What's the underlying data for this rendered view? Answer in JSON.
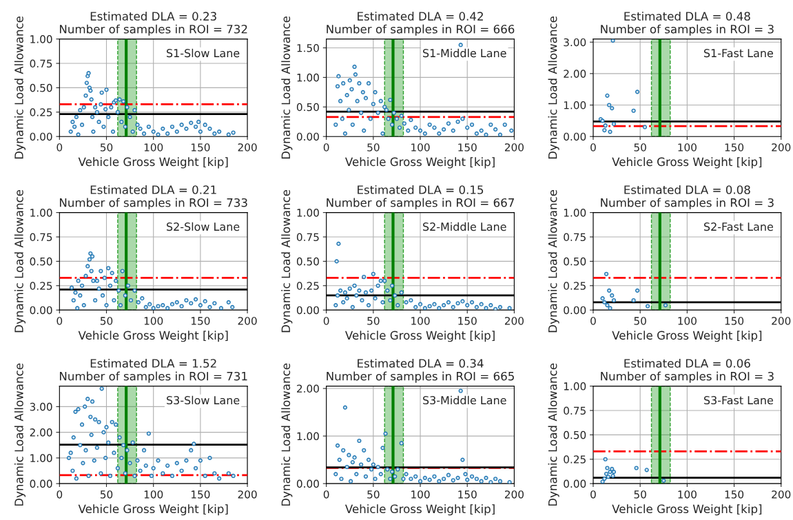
{
  "chart_data": [
    {
      "type": "scatter",
      "title": "Estimated DLA = 0.23\nNumber of samples in ROI = 732",
      "xlabel": "Vehicle Gross Weight [kip]",
      "ylabel": "Dynamic Load Allowance",
      "annotations": [
        "S1-Slow Lane"
      ],
      "color": "#1f77b4",
      "marker": "circle",
      "grid": true,
      "x": [
        12,
        14,
        16,
        18,
        20,
        22,
        24,
        26,
        28,
        29,
        30,
        31,
        32,
        33,
        34,
        35,
        36,
        38,
        40,
        42,
        44,
        45,
        47,
        49,
        50,
        52,
        55,
        57,
        58,
        60,
        62,
        64,
        66,
        68,
        70,
        72,
        75,
        78,
        80,
        83,
        86,
        90,
        95,
        100,
        105,
        110,
        115,
        120,
        125,
        130,
        135,
        140,
        145,
        148,
        150,
        155,
        160,
        165,
        170,
        180,
        185
      ],
      "values": [
        0.05,
        0.15,
        0.1,
        0.2,
        0.02,
        0.27,
        0.12,
        0.3,
        0.42,
        0.55,
        0.62,
        0.65,
        0.5,
        0.47,
        0.38,
        0.2,
        0.05,
        0.3,
        0.25,
        0.15,
        0.33,
        0.45,
        0.1,
        0.28,
        0.48,
        0.2,
        0.3,
        0.05,
        0.35,
        0.37,
        0.25,
        0.38,
        0.15,
        0.36,
        0.1,
        0.3,
        0.2,
        0.05,
        0.27,
        0.12,
        0.08,
        0.03,
        0.1,
        0.05,
        0.02,
        0.08,
        0.03,
        0.1,
        0.05,
        0.12,
        0.08,
        0.14,
        0.1,
        0.15,
        0.05,
        0.12,
        0.08,
        0.03,
        0.05,
        0.02,
        0.04
      ],
      "xlim": [
        0,
        200
      ],
      "xticks": [
        0,
        50,
        100,
        150,
        200
      ],
      "ylim": [
        0,
        1
      ],
      "yticks": [
        {
          "value": 0,
          "label": "0.00"
        },
        {
          "value": 0.25,
          "label": "0.25"
        },
        {
          "value": 0.5,
          "label": "0.50"
        },
        {
          "value": 0.75,
          "label": "0.75"
        },
        {
          "value": 1,
          "label": "1.00"
        }
      ],
      "ref_lines": [
        {
          "axis": "y",
          "value": 0.33,
          "color": "#ff0000",
          "line_style": "dashdot"
        },
        {
          "axis": "y",
          "value": 0.23,
          "color": "#000000",
          "line_style": "solid"
        },
        {
          "axis": "x",
          "value": 71,
          "color": "#008000",
          "line_style": "solid"
        }
      ],
      "bands": [
        {
          "axis": "x",
          "from": 62,
          "to": 82,
          "color": "#2ca02c"
        }
      ]
    },
    {
      "type": "scatter",
      "title": "Estimated DLA = 0.42\nNumber of samples in ROI = 666",
      "xlabel": "Vehicle Gross Weight [kip]",
      "ylabel": "Dynamic Load Allowance",
      "annotations": [
        "S1-Middle Lane"
      ],
      "color": "#1f77b4",
      "marker": "circle",
      "grid": true,
      "x": [
        10,
        12,
        13,
        15,
        17,
        18,
        20,
        22,
        24,
        25,
        27,
        28,
        30,
        31,
        33,
        35,
        37,
        39,
        40,
        42,
        45,
        47,
        50,
        52,
        55,
        58,
        60,
        62,
        64,
        66,
        68,
        70,
        72,
        75,
        78,
        80,
        83,
        87,
        90,
        95,
        100,
        105,
        110,
        115,
        120,
        125,
        130,
        135,
        140,
        143,
        145,
        150,
        155,
        160,
        165,
        170,
        175,
        180,
        185,
        190,
        197
      ],
      "values": [
        0.2,
        0.85,
        1.02,
        0.6,
        0.3,
        0.9,
        0.05,
        0.7,
        0.45,
        0.95,
        0.8,
        0.2,
        1.18,
        1.05,
        0.6,
        0.9,
        0.4,
        0.75,
        0.1,
        0.65,
        0.9,
        0.3,
        0.55,
        0.75,
        0.4,
        0.6,
        0.05,
        0.5,
        0.45,
        0.3,
        0.62,
        0.2,
        0.4,
        0.3,
        0.15,
        0.35,
        0.22,
        0.1,
        0.28,
        0.15,
        0.1,
        0.05,
        0.2,
        0.15,
        0.05,
        0.12,
        0.22,
        0.1,
        0.25,
        1.55,
        0.3,
        0.15,
        0.2,
        0.05,
        0.1,
        0.03,
        0.2,
        0.12,
        0.03,
        0.2,
        0.1
      ],
      "xlim": [
        0,
        200
      ],
      "xticks": [
        0,
        50,
        100,
        150,
        200
      ],
      "ylim": [
        0,
        1.65
      ],
      "yticks": [
        {
          "value": 0,
          "label": "0.00"
        },
        {
          "value": 0.5,
          "label": "0.50"
        },
        {
          "value": 1,
          "label": "1.00"
        },
        {
          "value": 1.5,
          "label": "1.50"
        }
      ],
      "ref_lines": [
        {
          "axis": "y",
          "value": 0.33,
          "color": "#ff0000",
          "line_style": "dashdot"
        },
        {
          "axis": "y",
          "value": 0.42,
          "color": "#000000",
          "line_style": "solid"
        },
        {
          "axis": "x",
          "value": 71,
          "color": "#008000",
          "line_style": "solid"
        }
      ],
      "bands": [
        {
          "axis": "x",
          "from": 62,
          "to": 82,
          "color": "#2ca02c"
        }
      ]
    },
    {
      "type": "scatter",
      "title": "Estimated DLA = 0.48\nNumber of samples in ROI = 3",
      "xlabel": "Vehicle Gross Weight [kip]",
      "ylabel": "Dynamic Load Allowance",
      "annotations": [
        "S1-Fast Lane"
      ],
      "color": "#1f77b4",
      "marker": "circle",
      "grid": true,
      "x": [
        8,
        10,
        12,
        13,
        15,
        17,
        18,
        20,
        21,
        22,
        43,
        47,
        55
      ],
      "values": [
        0.55,
        0.5,
        0.2,
        0.35,
        1.3,
        1.0,
        0.15,
        0.9,
        3.05,
        0.4,
        0.82,
        1.42,
        0.3
      ],
      "xlim": [
        0,
        200
      ],
      "xticks": [
        0,
        50,
        100,
        150,
        200
      ],
      "ylim": [
        0,
        3.1
      ],
      "yticks": [
        {
          "value": 0,
          "label": "0.00"
        },
        {
          "value": 1,
          "label": "1.00"
        },
        {
          "value": 2,
          "label": "2.00"
        },
        {
          "value": 3,
          "label": "3.00"
        }
      ],
      "ref_lines": [
        {
          "axis": "y",
          "value": 0.33,
          "color": "#ff0000",
          "line_style": "dashdot"
        },
        {
          "axis": "y",
          "value": 0.48,
          "color": "#000000",
          "line_style": "solid"
        },
        {
          "axis": "x",
          "value": 71,
          "color": "#008000",
          "line_style": "solid"
        }
      ],
      "bands": [
        {
          "axis": "x",
          "from": 62,
          "to": 82,
          "color": "#2ca02c"
        }
      ]
    },
    {
      "type": "scatter",
      "title": "Estimated DLA = 0.21\nNumber of samples in ROI = 733",
      "xlabel": "Vehicle Gross Weight [kip]",
      "ylabel": "Dynamic Load Allowance",
      "annotations": [
        "S2-Slow Lane"
      ],
      "color": "#1f77b4",
      "marker": "circle",
      "grid": true,
      "x": [
        13,
        15,
        17,
        19,
        20,
        22,
        24,
        26,
        28,
        30,
        32,
        33,
        34,
        35,
        36,
        38,
        40,
        42,
        44,
        46,
        48,
        50,
        52,
        54,
        56,
        58,
        60,
        63,
        65,
        67,
        70,
        73,
        76,
        80,
        84,
        88,
        92,
        96,
        100,
        105,
        110,
        115,
        120,
        125,
        130,
        135,
        140,
        145,
        150,
        155,
        160,
        165,
        172,
        180,
        184
      ],
      "values": [
        0.23,
        0.1,
        0.18,
        0.02,
        0.3,
        0.15,
        0.25,
        0.05,
        0.35,
        0.45,
        0.52,
        0.58,
        0.4,
        0.55,
        0.3,
        0.1,
        0.3,
        0.22,
        0.4,
        0.15,
        0.33,
        0.05,
        0.43,
        0.25,
        0.38,
        0.1,
        0.3,
        0.2,
        0.05,
        0.4,
        0.15,
        0.25,
        0.1,
        0.2,
        0.08,
        0.12,
        0.03,
        0.06,
        0.02,
        0.04,
        0.05,
        0.02,
        0.06,
        0.08,
        0.04,
        0.1,
        0.07,
        0.11,
        0.05,
        0.09,
        0.03,
        0.07,
        0.02,
        0.08,
        0.03
      ],
      "xlim": [
        0,
        200
      ],
      "xticks": [
        0,
        50,
        100,
        150,
        200
      ],
      "ylim": [
        0,
        1
      ],
      "yticks": [
        {
          "value": 0,
          "label": "0.00"
        },
        {
          "value": 0.25,
          "label": "0.25"
        },
        {
          "value": 0.5,
          "label": "0.50"
        },
        {
          "value": 0.75,
          "label": "0.75"
        },
        {
          "value": 1,
          "label": "1.00"
        }
      ],
      "ref_lines": [
        {
          "axis": "y",
          "value": 0.33,
          "color": "#ff0000",
          "line_style": "dashdot"
        },
        {
          "axis": "y",
          "value": 0.21,
          "color": "#000000",
          "line_style": "solid"
        },
        {
          "axis": "x",
          "value": 71,
          "color": "#008000",
          "line_style": "solid"
        }
      ],
      "bands": [
        {
          "axis": "x",
          "from": 62,
          "to": 82,
          "color": "#2ca02c"
        }
      ]
    },
    {
      "type": "scatter",
      "title": "Estimated DLA = 0.15\nNumber of samples in ROI = 667",
      "xlabel": "Vehicle Gross Weight [kip]",
      "ylabel": "Dynamic Load Allowance",
      "annotations": [
        "S2-Middle Lane"
      ],
      "color": "#1f77b4",
      "marker": "circle",
      "grid": true,
      "x": [
        10,
        11,
        12,
        13,
        15,
        18,
        20,
        22,
        25,
        28,
        30,
        32,
        35,
        38,
        40,
        42,
        45,
        48,
        50,
        52,
        55,
        58,
        60,
        62,
        65,
        68,
        70,
        73,
        76,
        80,
        85,
        90,
        95,
        100,
        105,
        110,
        115,
        120,
        125,
        130,
        135,
        140,
        145,
        150,
        155,
        160,
        165,
        170,
        175,
        180,
        185,
        195
      ],
      "values": [
        0.05,
        0.5,
        0.15,
        0.68,
        0.2,
        0.08,
        0.18,
        0.12,
        0.22,
        0.03,
        0.25,
        0.15,
        0.2,
        0.1,
        0.34,
        0.18,
        0.05,
        0.2,
        0.37,
        0.12,
        0.25,
        0.3,
        0.08,
        0.3,
        0.2,
        0.1,
        0.25,
        0.15,
        0.05,
        0.18,
        0.08,
        0.1,
        0.03,
        0.06,
        0.02,
        0.04,
        0.06,
        0.02,
        0.05,
        0.08,
        0.03,
        0.07,
        0.09,
        0.05,
        0.08,
        0.03,
        0.06,
        0.02,
        0.05,
        0.01,
        0.03,
        0.02
      ],
      "xlim": [
        0,
        200
      ],
      "xticks": [
        0,
        50,
        100,
        150,
        200
      ],
      "ylim": [
        0,
        1
      ],
      "yticks": [
        {
          "value": 0,
          "label": "0.00"
        },
        {
          "value": 0.25,
          "label": "0.25"
        },
        {
          "value": 0.5,
          "label": "0.50"
        },
        {
          "value": 0.75,
          "label": "0.75"
        },
        {
          "value": 1,
          "label": "1.00"
        }
      ],
      "ref_lines": [
        {
          "axis": "y",
          "value": 0.33,
          "color": "#ff0000",
          "line_style": "dashdot"
        },
        {
          "axis": "y",
          "value": 0.15,
          "color": "#000000",
          "line_style": "solid"
        },
        {
          "axis": "x",
          "value": 71,
          "color": "#008000",
          "line_style": "solid"
        }
      ],
      "bands": [
        {
          "axis": "x",
          "from": 62,
          "to": 82,
          "color": "#2ca02c"
        }
      ]
    },
    {
      "type": "scatter",
      "title": "Estimated DLA = 0.08\nNumber of samples in ROI = 3",
      "xlabel": "Vehicle Gross Weight [kip]",
      "ylabel": "Dynamic Load Allowance",
      "annotations": [
        "S2-Fast Lane"
      ],
      "color": "#1f77b4",
      "marker": "circle",
      "grid": true,
      "x": [
        10,
        12,
        14,
        15,
        17,
        18,
        20,
        22,
        43,
        47,
        58,
        77
      ],
      "values": [
        0.12,
        0.08,
        0.37,
        0.05,
        0.2,
        0.02,
        0.15,
        0.1,
        0.1,
        0.2,
        0.04,
        0.05
      ],
      "xlim": [
        0,
        200
      ],
      "xticks": [
        0,
        50,
        100,
        150,
        200
      ],
      "ylim": [
        0,
        1
      ],
      "yticks": [
        {
          "value": 0,
          "label": "0.00"
        },
        {
          "value": 0.25,
          "label": "0.25"
        },
        {
          "value": 0.5,
          "label": "0.50"
        },
        {
          "value": 0.75,
          "label": "0.75"
        },
        {
          "value": 1,
          "label": "1.00"
        }
      ],
      "ref_lines": [
        {
          "axis": "y",
          "value": 0.33,
          "color": "#ff0000",
          "line_style": "dashdot"
        },
        {
          "axis": "y",
          "value": 0.08,
          "color": "#000000",
          "line_style": "solid"
        },
        {
          "axis": "x",
          "value": 71,
          "color": "#008000",
          "line_style": "solid"
        }
      ],
      "bands": [
        {
          "axis": "x",
          "from": 62,
          "to": 82,
          "color": "#2ca02c"
        }
      ]
    },
    {
      "type": "scatter",
      "title": "Estimated DLA = 1.52\nNumber of samples in ROI = 731",
      "xlabel": "Vehicle Gross Weight [kip]",
      "ylabel": "Dynamic Load Allowance",
      "annotations": [
        "S3-Slow Lane"
      ],
      "color": "#1f77b4",
      "marker": "circle",
      "grid": true,
      "x": [
        10,
        12,
        14,
        15,
        17,
        18,
        20,
        22,
        24,
        25,
        27,
        28,
        30,
        31,
        33,
        34,
        35,
        37,
        38,
        40,
        42,
        44,
        45,
        47,
        49,
        50,
        52,
        54,
        56,
        58,
        60,
        62,
        64,
        66,
        68,
        70,
        72,
        75,
        78,
        80,
        83,
        86,
        90,
        92,
        95,
        98,
        100,
        105,
        110,
        115,
        120,
        125,
        130,
        135,
        140,
        143,
        145,
        150,
        155,
        160,
        165,
        170,
        180,
        185
      ],
      "values": [
        1.0,
        1.2,
        0.5,
        1.8,
        2.8,
        0.2,
        2.9,
        1.5,
        2.3,
        0.8,
        3.0,
        1.3,
        3.3,
        0.3,
        2.6,
        1.9,
        3.2,
        0.9,
        2.5,
        1.4,
        2.4,
        0.4,
        3.7,
        2.0,
        1.0,
        2.2,
        1.6,
        0.3,
        2.4,
        1.2,
        2.3,
        0.6,
        1.8,
        1.0,
        1.5,
        0.4,
        1.3,
        0.8,
        1.6,
        0.3,
        0.9,
        0.5,
        1.3,
        0.7,
        1.95,
        0.3,
        0.6,
        0.9,
        0.4,
        0.7,
        0.3,
        0.8,
        0.5,
        0.9,
        1.3,
        1.55,
        0.6,
        0.9,
        0.3,
        1.0,
        0.4,
        0.2,
        0.4,
        0.3
      ],
      "xlim": [
        0,
        200
      ],
      "xticks": [
        0,
        50,
        100,
        150,
        200
      ],
      "ylim": [
        0,
        3.8
      ],
      "yticks": [
        {
          "value": 0,
          "label": "0.00"
        },
        {
          "value": 1,
          "label": "1.00"
        },
        {
          "value": 2,
          "label": "2.00"
        },
        {
          "value": 3,
          "label": "3.00"
        }
      ],
      "ref_lines": [
        {
          "axis": "y",
          "value": 0.33,
          "color": "#ff0000",
          "line_style": "dashdot"
        },
        {
          "axis": "y",
          "value": 1.52,
          "color": "#000000",
          "line_style": "solid"
        },
        {
          "axis": "x",
          "value": 71,
          "color": "#008000",
          "line_style": "solid"
        }
      ],
      "bands": [
        {
          "axis": "x",
          "from": 62,
          "to": 82,
          "color": "#2ca02c"
        }
      ]
    },
    {
      "type": "scatter",
      "title": "Estimated DLA = 0.34\nNumber of samples in ROI = 665",
      "xlabel": "Vehicle Gross Weight [kip]",
      "ylabel": "Dynamic Load Allowance",
      "annotations": [
        "S3-Middle Lane"
      ],
      "color": "#1f77b4",
      "marker": "circle",
      "grid": true,
      "x": [
        10,
        12,
        14,
        16,
        18,
        20,
        22,
        24,
        26,
        28,
        30,
        32,
        35,
        37,
        40,
        42,
        45,
        48,
        50,
        52,
        55,
        58,
        60,
        63,
        65,
        68,
        70,
        73,
        76,
        80,
        82,
        85,
        90,
        95,
        100,
        105,
        110,
        115,
        120,
        125,
        130,
        135,
        140,
        143,
        145,
        148,
        150,
        155,
        160,
        165,
        170,
        175,
        180,
        185,
        195
      ],
      "values": [
        0.2,
        0.8,
        0.5,
        0.1,
        0.7,
        1.6,
        0.35,
        0.6,
        0.05,
        0.45,
        0.55,
        0.2,
        0.9,
        0.4,
        0.7,
        0.15,
        0.5,
        0.3,
        0.4,
        0.1,
        0.35,
        0.2,
        0.75,
        1.05,
        0.3,
        0.1,
        0.25,
        0.15,
        0.3,
        0.85,
        0.1,
        0.2,
        0.1,
        0.15,
        0.05,
        0.12,
        0.08,
        0.15,
        0.05,
        0.1,
        0.18,
        0.07,
        0.12,
        1.95,
        0.5,
        0.2,
        0.08,
        0.15,
        0.1,
        0.05,
        0.12,
        0.03,
        0.1,
        0.05,
        0.03
      ],
      "xlim": [
        0,
        200
      ],
      "xticks": [
        0,
        50,
        100,
        150,
        200
      ],
      "ylim": [
        0,
        2.05
      ],
      "yticks": [
        {
          "value": 0,
          "label": "0.00"
        },
        {
          "value": 1,
          "label": "1.00"
        },
        {
          "value": 2,
          "label": "2.00"
        }
      ],
      "ref_lines": [
        {
          "axis": "y",
          "value": 0.33,
          "color": "#ff0000",
          "line_style": "dashdot"
        },
        {
          "axis": "y",
          "value": 0.34,
          "color": "#000000",
          "line_style": "solid"
        },
        {
          "axis": "x",
          "value": 71,
          "color": "#008000",
          "line_style": "solid"
        }
      ],
      "bands": [
        {
          "axis": "x",
          "from": 62,
          "to": 82,
          "color": "#2ca02c"
        }
      ]
    },
    {
      "type": "scatter",
      "title": "Estimated DLA = 0.06\nNumber of samples in ROI = 3",
      "xlabel": "Vehicle Gross Weight [kip]",
      "ylabel": "Dynamic Load Allowance",
      "annotations": [
        "S3-Fast Lane"
      ],
      "color": "#1f77b4",
      "marker": "circle",
      "grid": true,
      "x": [
        10,
        12,
        13,
        14,
        15,
        16,
        18,
        20,
        21,
        22,
        46,
        57,
        75
      ],
      "values": [
        0.02,
        0.05,
        0.25,
        0.1,
        0.16,
        0.07,
        0.12,
        0.15,
        0.08,
        0.12,
        0.16,
        0.14,
        0.03
      ],
      "xlim": [
        0,
        200
      ],
      "xticks": [
        0,
        50,
        100,
        150,
        200
      ],
      "ylim": [
        0,
        1
      ],
      "yticks": [
        {
          "value": 0,
          "label": "0.00"
        },
        {
          "value": 0.25,
          "label": "0.25"
        },
        {
          "value": 0.5,
          "label": "0.50"
        },
        {
          "value": 0.75,
          "label": "0.75"
        },
        {
          "value": 1,
          "label": "1.00"
        }
      ],
      "ref_lines": [
        {
          "axis": "y",
          "value": 0.33,
          "color": "#ff0000",
          "line_style": "dashdot"
        },
        {
          "axis": "y",
          "value": 0.06,
          "color": "#000000",
          "line_style": "solid"
        },
        {
          "axis": "x",
          "value": 71,
          "color": "#008000",
          "line_style": "solid"
        }
      ],
      "bands": [
        {
          "axis": "x",
          "from": 62,
          "to": 82,
          "color": "#2ca02c"
        }
      ]
    }
  ]
}
